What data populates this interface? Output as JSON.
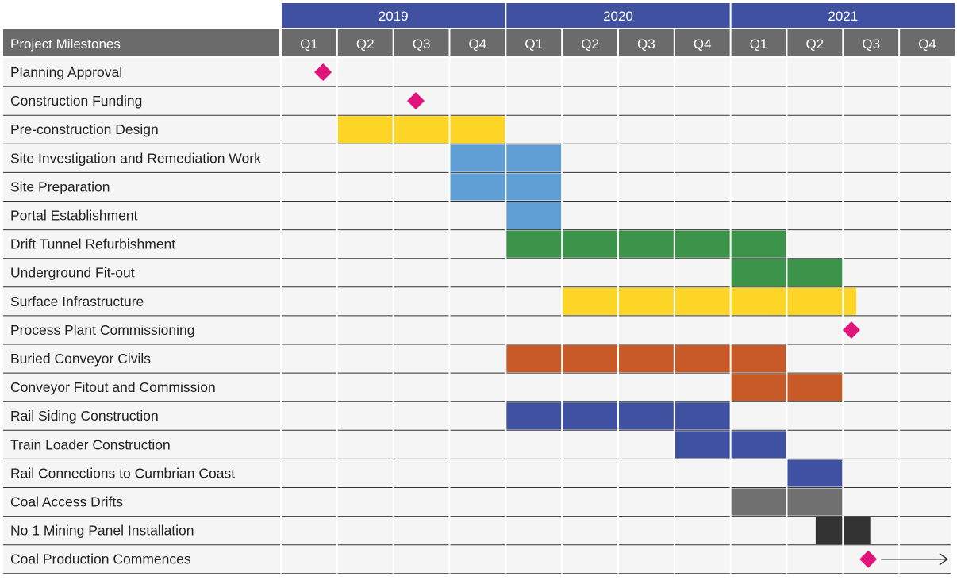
{
  "chart_data": {
    "type": "gantt",
    "header_label": "Project Milestones",
    "years": [
      "2019",
      "2020",
      "2021"
    ],
    "quarters": [
      "Q1",
      "Q2",
      "Q3",
      "Q4",
      "Q1",
      "Q2",
      "Q3",
      "Q4",
      "Q1",
      "Q2",
      "Q3",
      "Q4"
    ],
    "colors": {
      "year_header": "#3f51a0",
      "quarter_header": "#6b6b6b",
      "row_bg": "#f5f5f5",
      "milestone": "#e0147a",
      "yellow": "#fcd526",
      "blue": "#5f9fd6",
      "green": "#3b944a",
      "orange": "#c85a28",
      "navy": "#3f51a0",
      "grey": "#707070",
      "dark": "#333333"
    },
    "rows": [
      {
        "label": "Planning Approval",
        "milestone": 0.75
      },
      {
        "label": "Construction Funding",
        "milestone": 2.4
      },
      {
        "label": "Pre-construction Design",
        "bar": {
          "start": 1,
          "end": 4,
          "color": "yellow"
        }
      },
      {
        "label": "Site Investigation and Remediation Work",
        "bar": {
          "start": 3,
          "end": 5,
          "color": "blue"
        }
      },
      {
        "label": "Site Preparation",
        "bar": {
          "start": 3,
          "end": 5,
          "color": "blue"
        }
      },
      {
        "label": "Portal Establishment",
        "bar": {
          "start": 4,
          "end": 5,
          "color": "blue"
        }
      },
      {
        "label": "Drift Tunnel Refurbishment",
        "bar": {
          "start": 4,
          "end": 9,
          "color": "green"
        }
      },
      {
        "label": "Underground Fit-out",
        "bar": {
          "start": 8,
          "end": 10,
          "color": "green"
        }
      },
      {
        "label": "Surface Infrastructure",
        "bar": {
          "start": 5,
          "end": 10.25,
          "color": "yellow"
        }
      },
      {
        "label": "Process Plant Commissioning",
        "milestone": 10.15
      },
      {
        "label": "Buried Conveyor Civils",
        "bar": {
          "start": 4,
          "end": 9,
          "color": "orange"
        }
      },
      {
        "label": "Conveyor Fitout and Commission",
        "bar": {
          "start": 8,
          "end": 10,
          "color": "orange"
        }
      },
      {
        "label": "Rail Siding Construction",
        "bar": {
          "start": 4,
          "end": 8,
          "color": "navy"
        }
      },
      {
        "label": "Train Loader Construction",
        "bar": {
          "start": 7,
          "end": 9,
          "color": "navy"
        }
      },
      {
        "label": "Rail Connections to Cumbrian Coast",
        "bar": {
          "start": 9,
          "end": 10,
          "color": "navy"
        }
      },
      {
        "label": "Coal Access Drifts",
        "bar": {
          "start": 8,
          "end": 10,
          "color": "grey"
        }
      },
      {
        "label": "No 1 Mining Panel Installation",
        "bar": {
          "start": 9.5,
          "end": 10.5,
          "color": "dark"
        }
      },
      {
        "label": "Coal Production Commences",
        "milestone": 10.45,
        "arrow_to": 12
      }
    ]
  }
}
